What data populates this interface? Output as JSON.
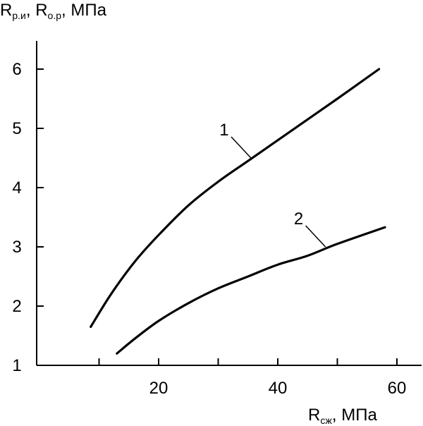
{
  "chart_data": {
    "type": "line",
    "title": "",
    "xlabel": {
      "main": "R",
      "sub": "сж",
      "unit": ", МПа"
    },
    "ylabel": {
      "main1": "R",
      "sub1": "р.и",
      "sep": ", ",
      "main2": "R",
      "sub2": "о.р",
      "unit": ", МПа"
    },
    "xlim": [
      0,
      62
    ],
    "ylim": [
      1,
      6.6
    ],
    "x_ticks": [
      10,
      20,
      30,
      40,
      50,
      60
    ],
    "x_tick_labels": [
      "20",
      "40",
      "60"
    ],
    "x_tick_label_values": [
      20,
      40,
      60
    ],
    "y_ticks": [
      1,
      2,
      3,
      4,
      5,
      6
    ],
    "y_tick_labels": [
      "1",
      "2",
      "3",
      "4",
      "5",
      "6"
    ],
    "grid": false,
    "series": [
      {
        "label": "1",
        "color": "#000000",
        "label_at": {
          "x": 35.5,
          "y": 4.5
        },
        "points": [
          {
            "x": 8.6,
            "y": 1.65
          },
          {
            "x": 12,
            "y": 2.2
          },
          {
            "x": 16,
            "y": 2.75
          },
          {
            "x": 20,
            "y": 3.2
          },
          {
            "x": 25,
            "y": 3.7
          },
          {
            "x": 30,
            "y": 4.1
          },
          {
            "x": 35,
            "y": 4.45
          },
          {
            "x": 40,
            "y": 4.8
          },
          {
            "x": 45,
            "y": 5.15
          },
          {
            "x": 50,
            "y": 5.5
          },
          {
            "x": 57,
            "y": 6.0
          }
        ]
      },
      {
        "label": "2",
        "color": "#000000",
        "label_at": {
          "x": 48,
          "y": 3.0
        },
        "points": [
          {
            "x": 13,
            "y": 1.2
          },
          {
            "x": 16,
            "y": 1.45
          },
          {
            "x": 20,
            "y": 1.75
          },
          {
            "x": 25,
            "y": 2.05
          },
          {
            "x": 30,
            "y": 2.3
          },
          {
            "x": 35,
            "y": 2.5
          },
          {
            "x": 40,
            "y": 2.7
          },
          {
            "x": 45,
            "y": 2.85
          },
          {
            "x": 50,
            "y": 3.05
          },
          {
            "x": 58,
            "y": 3.33
          }
        ]
      }
    ]
  }
}
